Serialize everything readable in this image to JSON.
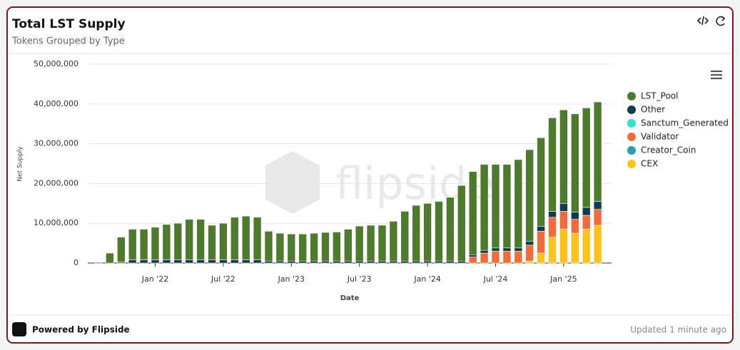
{
  "header": {
    "title": "Total LST Supply",
    "subtitle": "Tokens Grouped by Type"
  },
  "footer": {
    "brand": "Powered by Flipside",
    "updated": "Updated 1 minute ago"
  },
  "chart_data": {
    "type": "stacked_bar",
    "watermark": "flipside",
    "x_label": "Date",
    "y_label": "Net Supply",
    "categories": [
      "2021-08",
      "2021-09",
      "2021-10",
      "2021-11",
      "2021-12",
      "2022-01",
      "2022-02",
      "2022-03",
      "2022-04",
      "2022-05",
      "2022-06",
      "2022-07",
      "2022-08",
      "2022-09",
      "2022-10",
      "2022-11",
      "2022-12",
      "2023-01",
      "2023-02",
      "2023-03",
      "2023-04",
      "2023-05",
      "2023-06",
      "2023-07",
      "2023-08",
      "2023-09",
      "2023-10",
      "2023-11",
      "2023-12",
      "2024-01",
      "2024-02",
      "2024-03",
      "2024-04",
      "2024-05",
      "2024-06",
      "2024-07",
      "2024-08",
      "2024-09",
      "2024-10",
      "2024-11",
      "2024-12",
      "2025-01",
      "2025-02",
      "2025-03",
      "2025-04"
    ],
    "xticks": [
      {
        "value": "2022-01",
        "label": "Jan '22"
      },
      {
        "value": "2022-07",
        "label": "Jul '22"
      },
      {
        "value": "2023-01",
        "label": "Jan '23"
      },
      {
        "value": "2023-07",
        "label": "Jul '23"
      },
      {
        "value": "2024-01",
        "label": "Jan '24"
      },
      {
        "value": "2024-07",
        "label": "Jul '24"
      },
      {
        "value": "2025-01",
        "label": "Jan '25"
      }
    ],
    "ylim": [
      0,
      50000000
    ],
    "yticks": [
      0,
      {
        "value": 10000000,
        "label": "10,000,000"
      },
      {
        "value": 20000000,
        "label": "20,000,000"
      },
      {
        "value": 30000000,
        "label": "30,000,000"
      },
      {
        "value": 40000000,
        "label": "40,000,000"
      },
      {
        "value": 50000000,
        "label": "50,000,000"
      }
    ],
    "grid": true,
    "legend": "right",
    "series": [
      {
        "name": "LST_Pool",
        "color": "#4e7a2c",
        "values": [
          200000,
          2500000,
          6200000,
          7700000,
          7700000,
          8200000,
          8900000,
          9200000,
          10200000,
          10200000,
          8700000,
          9200000,
          10700000,
          11000000,
          10700000,
          7500000,
          7000000,
          6800000,
          6800000,
          7000000,
          7200000,
          7300000,
          8000000,
          8800000,
          9000000,
          9000000,
          10000000,
          12500000,
          14000000,
          14500000,
          15000000,
          16000000,
          19000000,
          20900000,
          21600000,
          21000000,
          21000000,
          22200000,
          23000000,
          22300000,
          23500000,
          23500000,
          24700000,
          25000000,
          25000000
        ]
      },
      {
        "name": "Other",
        "color": "#0d3b4f",
        "values": [
          0,
          0,
          300000,
          800000,
          800000,
          800000,
          800000,
          800000,
          800000,
          800000,
          800000,
          800000,
          800000,
          800000,
          800000,
          500000,
          500000,
          500000,
          500000,
          500000,
          500000,
          500000,
          500000,
          500000,
          500000,
          500000,
          500000,
          500000,
          500000,
          500000,
          500000,
          500000,
          500000,
          600000,
          700000,
          800000,
          800000,
          800000,
          1000000,
          1200000,
          1500000,
          2000000,
          1800000,
          2000000,
          2000000
        ]
      },
      {
        "name": "Sanctum_Generated",
        "color": "#2de0d0",
        "values": [
          0,
          0,
          0,
          0,
          0,
          0,
          0,
          0,
          0,
          0,
          0,
          0,
          0,
          0,
          0,
          0,
          0,
          0,
          0,
          0,
          0,
          0,
          0,
          0,
          0,
          0,
          0,
          0,
          0,
          0,
          0,
          0,
          0,
          0,
          0,
          0,
          0,
          0,
          0,
          0,
          0,
          0,
          0,
          0,
          0
        ]
      },
      {
        "name": "Validator",
        "color": "#f26b3a",
        "values": [
          0,
          0,
          0,
          0,
          0,
          0,
          0,
          0,
          0,
          0,
          0,
          0,
          0,
          0,
          0,
          0,
          0,
          0,
          0,
          0,
          0,
          0,
          0,
          0,
          0,
          0,
          0,
          0,
          0,
          0,
          0,
          0,
          0,
          1500000,
          2500000,
          3000000,
          3000000,
          3000000,
          4000000,
          5500000,
          5000000,
          4500000,
          3500000,
          3500000,
          4000000
        ]
      },
      {
        "name": "Creator_Coin",
        "color": "#2a9db8",
        "values": [
          0,
          0,
          0,
          0,
          0,
          0,
          0,
          0,
          0,
          0,
          0,
          0,
          0,
          0,
          0,
          0,
          0,
          0,
          0,
          0,
          0,
          0,
          0,
          0,
          0,
          0,
          0,
          0,
          0,
          0,
          0,
          0,
          0,
          0,
          0,
          0,
          0,
          0,
          0,
          0,
          0,
          0,
          0,
          0,
          0
        ]
      },
      {
        "name": "CEX",
        "color": "#fbc21b",
        "values": [
          0,
          0,
          0,
          0,
          0,
          0,
          0,
          0,
          0,
          0,
          0,
          0,
          0,
          0,
          0,
          0,
          0,
          0,
          0,
          0,
          0,
          0,
          0,
          0,
          0,
          0,
          0,
          0,
          0,
          0,
          0,
          0,
          0,
          0,
          0,
          0,
          0,
          0,
          500000,
          2500000,
          6500000,
          8500000,
          7500000,
          8500000,
          9500000
        ]
      }
    ]
  }
}
